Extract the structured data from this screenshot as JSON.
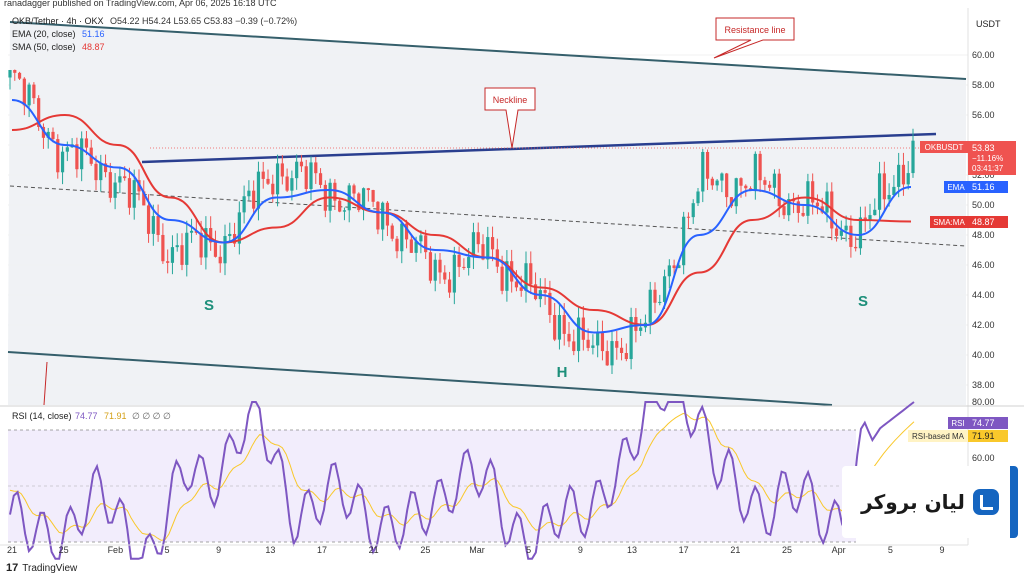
{
  "header": {
    "published": "ranadagger published on TradingView.com, Apr 06, 2025 16:18 UTC",
    "symbol": "OKB/Tether · 4h · OKX",
    "ohlc": "O54.22 H54.24 L53.65 C53.83 −0.39 (−0.72%)"
  },
  "indicators": {
    "ema_label": "EMA (20, close)",
    "ema_value": "51.16",
    "sma_label": "SMA (50, close)",
    "sma_value": "48.87",
    "rsi_label": "RSI (14, close)",
    "rsi_value": "74.77",
    "rsi_ma_value": "71.91",
    "rsi_extra": "∅ ∅ ∅ ∅"
  },
  "price_axis": {
    "currency": "USDT",
    "ticks": [
      "60.00",
      "58.00",
      "56.00",
      "54.00",
      "52.00",
      "50.00",
      "48.00",
      "46.00",
      "44.00",
      "42.00",
      "40.00",
      "38.00"
    ],
    "rsi_ticks": [
      "80.00",
      "60.00"
    ]
  },
  "tags": {
    "symbol": "OKBUSDT",
    "price": "53.83",
    "change": "−11.16%",
    "countdown": "03:41:37",
    "ema_name": "EMA",
    "ema": "51.16",
    "sma_name": "SMA:MA",
    "sma": "48.87",
    "rsi_name": "RSI",
    "rsi": "74.77",
    "rsi_ma_name": "RSI-based MA",
    "rsi_ma": "71.91"
  },
  "time_axis": [
    "21",
    "25",
    "Feb",
    "5",
    "9",
    "13",
    "17",
    "21",
    "25",
    "Mar",
    "5",
    "9",
    "13",
    "17",
    "21",
    "25",
    "Apr",
    "5",
    "9"
  ],
  "annotations": {
    "resistance": "Resistance line",
    "neckline": "Neckline",
    "left_shoulder": "S",
    "head": "H",
    "right_shoulder": "S"
  },
  "brand": {
    "name": "لیان بروکر"
  },
  "footer": {
    "logo": "17",
    "name": "TradingView"
  },
  "colors": {
    "up": "#26a69a",
    "down": "#ef5350",
    "ema": "#2962ff",
    "sma": "#e53935",
    "rsi": "#7e57c2",
    "rsi_ma": "#f9c82b",
    "neckline": "#2a3f8f",
    "channel": "#355f6b"
  },
  "chart_data": {
    "type": "line",
    "title": "OKB/Tether · 4h · OKX",
    "ylabel": "USDT",
    "ylim": [
      37,
      62
    ],
    "x": [
      "21",
      "25",
      "Feb",
      "5",
      "9",
      "13",
      "17",
      "21",
      "25",
      "Mar",
      "5",
      "9",
      "13",
      "17",
      "21",
      "25",
      "Apr",
      "5"
    ],
    "series": [
      {
        "name": "OKBUSDT",
        "values": [
          58.5,
          53.5,
          52.0,
          47.0,
          47.5,
          52.5,
          51.0,
          49.5,
          45.5,
          47.0,
          43.5,
          40.0,
          42.0,
          51.5,
          51.5,
          50.0,
          48.0,
          53.8
        ]
      },
      {
        "name": "EMA (20, close)",
        "values": [
          57.0,
          54.0,
          52.5,
          49.0,
          47.5,
          50.5,
          51.0,
          49.5,
          47.0,
          46.5,
          44.0,
          41.5,
          42.0,
          48.0,
          51.0,
          50.0,
          48.0,
          51.2
        ]
      },
      {
        "name": "SMA (50, close)",
        "values": [
          55.0,
          56.0,
          54.0,
          50.5,
          47.5,
          48.5,
          50.5,
          49.5,
          48.0,
          46.5,
          44.5,
          43.0,
          42.0,
          45.5,
          49.0,
          50.5,
          49.0,
          48.9
        ]
      }
    ]
  }
}
